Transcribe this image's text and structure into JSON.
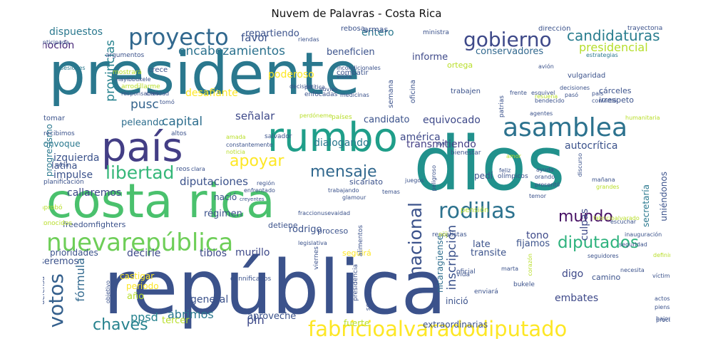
{
  "chart_data": {
    "type": "wordcloud",
    "title": "Nuvem de Palavras - Costa Rica",
    "words": [
      {
        "text": "presidente",
        "color": "#2a788e"
      },
      {
        "text": "república",
        "color": "#3b528b"
      },
      {
        "text": "dios",
        "color": "#21918c"
      },
      {
        "text": "costa rica",
        "color": "#4ac16d"
      },
      {
        "text": "país",
        "color": "#433e85"
      },
      {
        "text": "rumbo",
        "color": "#1f9e89"
      },
      {
        "text": "asamblea",
        "color": "#2c728e"
      },
      {
        "text": "nuevarepública",
        "color": "#6ece58"
      },
      {
        "text": "fabricioalvaradodiputado",
        "color": "#fde725"
      },
      {
        "text": "proyecto",
        "color": "#31688e"
      },
      {
        "text": "gobierno",
        "color": "#3e4989"
      },
      {
        "text": "rodillas",
        "color": "#2c728e"
      },
      {
        "text": "libertad",
        "color": "#35b779"
      },
      {
        "text": "diputados",
        "color": "#2db27d"
      },
      {
        "text": "mensaje",
        "color": "#31688e"
      },
      {
        "text": "votos",
        "color": "#35608d"
      },
      {
        "text": "mundo",
        "color": "#471164"
      },
      {
        "text": "chaves",
        "color": "#26828e"
      },
      {
        "text": "apoyar",
        "color": "#fde725"
      },
      {
        "text": "candidaturas",
        "color": "#287d8e"
      },
      {
        "text": "encabezamientos",
        "color": "#2c728e"
      },
      {
        "text": "nacional",
        "color": "#3b528b"
      },
      {
        "text": "provincias",
        "color": "#26828e"
      },
      {
        "text": "presidencial",
        "color": "#b5de2b"
      },
      {
        "text": "inscripción",
        "color": "#3b528b"
      },
      {
        "text": "diputaciones",
        "color": "#3b528b"
      },
      {
        "text": "capital",
        "color": "#2e6e8e"
      },
      {
        "text": "pusc",
        "color": "#33638d"
      },
      {
        "text": "fórmula",
        "color": "#31688e"
      },
      {
        "text": "pln",
        "color": "#3e4989"
      },
      {
        "text": "ppsd",
        "color": "#26828e"
      },
      {
        "text": "abrimos",
        "color": "#2a788e"
      },
      {
        "text": "dispuestos",
        "color": "#2a788e"
      },
      {
        "text": "moción",
        "color": "#482878"
      },
      {
        "text": "favor",
        "color": "#3b528b"
      },
      {
        "text": "desafiante",
        "color": "#fde725"
      },
      {
        "text": "señalar",
        "color": "#3e4989"
      },
      {
        "text": "dialogando",
        "color": "#2a788e"
      },
      {
        "text": "repartiendo",
        "color": "#3b528b"
      },
      {
        "text": "entero",
        "color": "#2a788e"
      },
      {
        "text": "informe",
        "color": "#3e4989"
      },
      {
        "text": "beneficien",
        "color": "#3b528b"
      },
      {
        "text": "ortega",
        "color": "#b8de29"
      },
      {
        "text": "conservadores",
        "color": "#31688e"
      },
      {
        "text": "poderoso",
        "color": "#fde725"
      },
      {
        "text": "peleando",
        "color": "#2e6e8e"
      },
      {
        "text": "candidato",
        "color": "#3b528b"
      },
      {
        "text": "equivocado",
        "color": "#3e4989"
      },
      {
        "text": "américa",
        "color": "#3e4989"
      },
      {
        "text": "transmitiendo",
        "color": "#433e85"
      },
      {
        "text": "autocrítica",
        "color": "#3b528b"
      },
      {
        "text": "latina",
        "color": "#3b528b"
      },
      {
        "text": "izquierda",
        "color": "#3b528b"
      },
      {
        "text": "impulse",
        "color": "#3b528b"
      },
      {
        "text": "callaremos",
        "color": "#3e4989"
      },
      {
        "text": "progresismo",
        "color": "#2a788e"
      },
      {
        "text": "régimen",
        "color": "#3b528b"
      },
      {
        "text": "rodrigo",
        "color": "#3b528b"
      },
      {
        "text": "culpas",
        "color": "#3e4989"
      },
      {
        "text": "nicaragüense",
        "color": "#2e6e8e"
      },
      {
        "text": "secretaría",
        "color": "#2a788e"
      },
      {
        "text": "uniéndonos",
        "color": "#3b528b"
      },
      {
        "text": "tono",
        "color": "#3e4989"
      },
      {
        "text": "late",
        "color": "#3b528b"
      },
      {
        "text": "transite",
        "color": "#3b528b"
      },
      {
        "text": "fijamos",
        "color": "#3b528b"
      },
      {
        "text": "seremos",
        "color": "#3b528b"
      },
      {
        "text": "decirle",
        "color": "#3e4989"
      },
      {
        "text": "tibios",
        "color": "#3e4989"
      },
      {
        "text": "murillo",
        "color": "#3e4989"
      },
      {
        "text": "prioridades",
        "color": "#3b528b"
      },
      {
        "text": "freedomfighters",
        "color": "#3b528b"
      },
      {
        "text": "digo",
        "color": "#3e4989"
      },
      {
        "text": "embates",
        "color": "#3e4989"
      },
      {
        "text": "general",
        "color": "#3b528b"
      },
      {
        "text": "año",
        "color": "#b8de29"
      },
      {
        "text": "castigar",
        "color": "#fde725"
      },
      {
        "text": "periodo",
        "color": "#fde725"
      },
      {
        "text": "aproveché",
        "color": "#3b528b"
      },
      {
        "text": "tercer",
        "color": "#b8de29"
      },
      {
        "text": "extraordinarias",
        "color": "#3b528b"
      },
      {
        "text": "fuerte",
        "color": "#b8de29"
      },
      {
        "text": "seguirá",
        "color": "#fde725"
      },
      {
        "text": "proceso",
        "color": "#3b528b"
      },
      {
        "text": "detiene",
        "color": "#3b528b"
      },
      {
        "text": "nació",
        "color": "#3b528b"
      },
      {
        "text": "sicariato",
        "color": "#3b528b"
      },
      {
        "text": "pedí",
        "color": "#3b528b"
      },
      {
        "text": "convoque",
        "color": "#2a788e"
      },
      {
        "text": "crece",
        "color": "#3b528b"
      },
      {
        "text": "armas",
        "color": "#3b528b"
      },
      {
        "text": "defensa",
        "color": "#3b528b"
      },
      {
        "text": "inició",
        "color": "#3b528b"
      },
      {
        "text": "camino",
        "color": "#3b528b"
      },
      {
        "text": "olímpicos",
        "color": "#3b528b"
      },
      {
        "text": "vulgaridad",
        "color": "#3b528b"
      },
      {
        "text": "cárceles",
        "color": "#3b528b"
      },
      {
        "text": "irrespeto",
        "color": "#3b528b"
      },
      {
        "text": "trabajen",
        "color": "#3b528b"
      },
      {
        "text": "combatir",
        "color": "#3b528b"
      },
      {
        "text": "rebosa",
        "color": "#3b528b"
      },
      {
        "text": "dirección",
        "color": "#3b528b"
      },
      {
        "text": "trayectoria",
        "color": "#3b528b"
      },
      {
        "text": "ministra",
        "color": "#3b528b"
      },
      {
        "text": "riendas",
        "color": "#3b528b"
      },
      {
        "text": "argumentos",
        "color": "#3b528b"
      },
      {
        "text": "estrategias",
        "color": "#2a788e"
      },
      {
        "text": "mostrará",
        "color": "#b8de29"
      },
      {
        "text": "nayibbukele",
        "color": "#3b528b"
      },
      {
        "text": "arrodillarme",
        "color": "#b8de29"
      },
      {
        "text": "responsables",
        "color": "#3b528b"
      },
      {
        "text": "claridad",
        "color": "#3b528b"
      },
      {
        "text": "enfocadas",
        "color": "#3b528b"
      },
      {
        "text": "medicinas",
        "color": "#3b528b"
      },
      {
        "text": "lluvias",
        "color": "#3b528b"
      },
      {
        "text": "semana",
        "color": "#3b528b"
      },
      {
        "text": "oficina",
        "color": "#3b528b"
      },
      {
        "text": "visita",
        "color": "#3b528b"
      },
      {
        "text": "incondicionales",
        "color": "#3b528b"
      },
      {
        "text": "política",
        "color": "#3b528b"
      },
      {
        "text": "decisión",
        "color": "#3b528b"
      },
      {
        "text": "perdóneme",
        "color": "#b8de29"
      },
      {
        "text": "tomar",
        "color": "#3b528b"
      },
      {
        "text": "recibimos",
        "color": "#3b528b"
      },
      {
        "text": "sesiones",
        "color": "#2a788e"
      },
      {
        "text": "anticipada",
        "color": "#3b528b"
      },
      {
        "text": "amada",
        "color": "#b8de29"
      },
      {
        "text": "constantemente",
        "color": "#3b528b"
      },
      {
        "text": "noticia",
        "color": "#b8de29"
      },
      {
        "text": "salvador",
        "color": "#3b528b"
      },
      {
        "text": "países",
        "color": "#b8de29"
      },
      {
        "text": "altos",
        "color": "#3b528b"
      },
      {
        "text": "reos",
        "color": "#3b528b"
      },
      {
        "text": "cosa",
        "color": "#3b528b"
      },
      {
        "text": "planificación",
        "color": "#3b528b"
      },
      {
        "text": "clara",
        "color": "#3b528b"
      },
      {
        "text": "aprobó",
        "color": "#b8de29"
      },
      {
        "text": "región",
        "color": "#3b528b"
      },
      {
        "text": "enfrentado",
        "color": "#3b528b"
      },
      {
        "text": "trabajando",
        "color": "#3b528b"
      },
      {
        "text": "glamour",
        "color": "#3b528b"
      },
      {
        "text": "temas",
        "color": "#3b528b"
      },
      {
        "text": "creyentes",
        "color": "#3b528b"
      },
      {
        "text": "conocidos",
        "color": "#b8de29"
      },
      {
        "text": "fraccionusevaidad",
        "color": "#3b528b"
      },
      {
        "text": "legislativa",
        "color": "#3b528b"
      },
      {
        "text": "alimentos",
        "color": "#3b528b"
      },
      {
        "text": "viernes",
        "color": "#3b528b"
      },
      {
        "text": "presidencia",
        "color": "#3b528b"
      },
      {
        "text": "seguros",
        "color": "#3b528b"
      },
      {
        "text": "vida",
        "color": "#3b528b"
      },
      {
        "text": "bukele",
        "color": "#3b528b"
      },
      {
        "text": "marta",
        "color": "#3b528b"
      },
      {
        "text": "oficial",
        "color": "#3b528b"
      },
      {
        "text": "enviará",
        "color": "#3b528b"
      },
      {
        "text": "objetivo",
        "color": "#3b528b"
      },
      {
        "text": "dannificados",
        "color": "#3b528b"
      },
      {
        "text": "rescatistas",
        "color": "#3b528b"
      },
      {
        "text": "oiij",
        "color": "#b8de29"
      },
      {
        "text": "pensión",
        "color": "#b8de29"
      },
      {
        "text": "fabricioalvarado",
        "color": "#b8de29"
      },
      {
        "text": "inauguración",
        "color": "#3b528b"
      },
      {
        "text": "escuchar",
        "color": "#3b528b"
      },
      {
        "text": "seguridad",
        "color": "#3b528b"
      },
      {
        "text": "necesita",
        "color": "#3b528b"
      },
      {
        "text": "víctima",
        "color": "#3b528b"
      },
      {
        "text": "actos",
        "color": "#3b528b"
      },
      {
        "text": "pienso",
        "color": "#3b528b"
      },
      {
        "text": "bajos",
        "color": "#3b528b"
      },
      {
        "text": "procurar",
        "color": "#3b528b"
      },
      {
        "text": "definimos",
        "color": "#b8de29"
      },
      {
        "text": "seguidores",
        "color": "#3b528b"
      },
      {
        "text": "corazón",
        "color": "#b8de29"
      },
      {
        "text": "ayuda",
        "color": "#3b528b"
      },
      {
        "text": "orando",
        "color": "#3b528b"
      },
      {
        "text": "presentó",
        "color": "#3b528b"
      },
      {
        "text": "temor",
        "color": "#3b528b"
      },
      {
        "text": "mañana",
        "color": "#3b528b"
      },
      {
        "text": "grandes",
        "color": "#b8de29"
      },
      {
        "text": "feliz",
        "color": "#3b528b"
      },
      {
        "text": "peligroso",
        "color": "#3b528b"
      },
      {
        "text": "juegos",
        "color": "#3b528b"
      },
      {
        "text": "ayer",
        "color": "#3b528b"
      },
      {
        "text": "bienestar",
        "color": "#3b528b"
      },
      {
        "text": "amor",
        "color": "#b8de29"
      },
      {
        "text": "discurso",
        "color": "#3b528b"
      },
      {
        "text": "humanitaria",
        "color": "#b8de29"
      },
      {
        "text": "agentes",
        "color": "#3b528b"
      },
      {
        "text": "patrias",
        "color": "#3b528b"
      },
      {
        "text": "bendecido",
        "color": "#3b528b"
      },
      {
        "text": "frente",
        "color": "#3b528b"
      },
      {
        "text": "esquivel",
        "color": "#3b528b"
      },
      {
        "text": "país",
        "color": "#3b528b"
      },
      {
        "text": "convirtió",
        "color": "#3b528b"
      },
      {
        "text": "resuena",
        "color": "#b8de29"
      },
      {
        "text": "avión",
        "color": "#3b528b"
      },
      {
        "text": "decisiones",
        "color": "#3b528b"
      },
      {
        "text": "pasó",
        "color": "#3b528b"
      },
      {
        "text": "tomó",
        "color": "#3b528b"
      }
    ]
  }
}
